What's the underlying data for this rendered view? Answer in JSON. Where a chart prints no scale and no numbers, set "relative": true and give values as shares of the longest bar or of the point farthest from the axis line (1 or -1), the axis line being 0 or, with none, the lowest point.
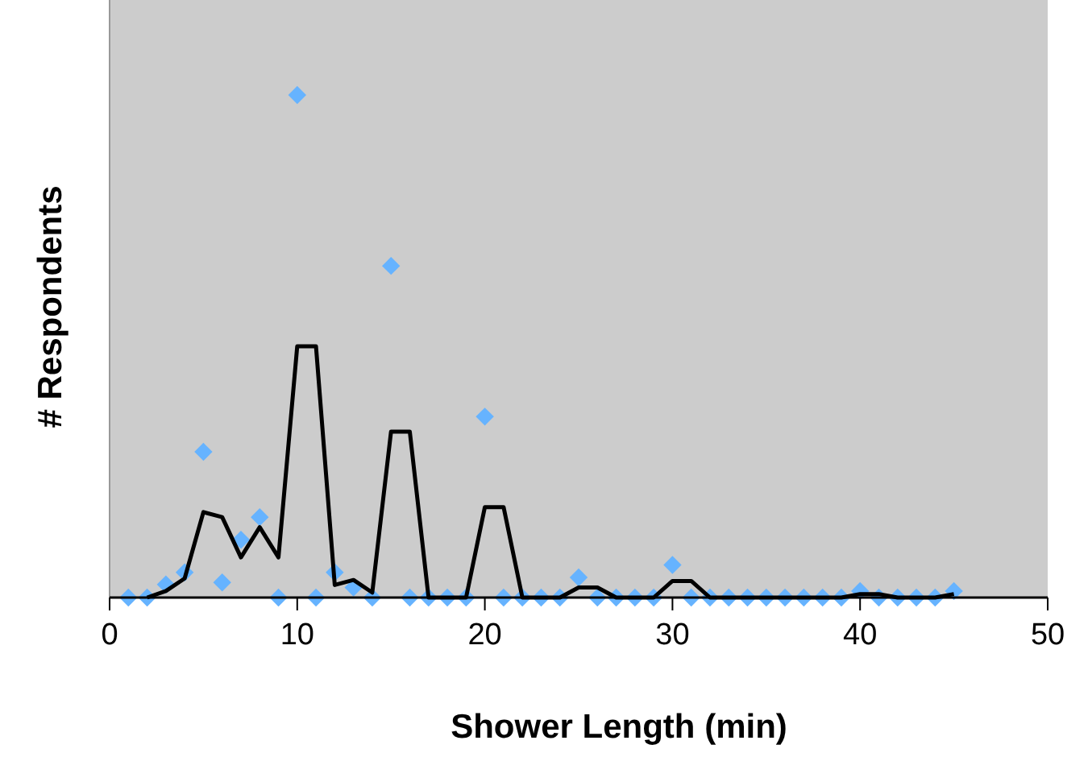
{
  "chart_data": {
    "type": "scatter",
    "xlabel": "Shower Length (min)",
    "ylabel": "# Respondents",
    "relative": true,
    "xlim": [
      0,
      50
    ],
    "xticks": [
      0,
      10,
      20,
      30,
      40,
      50
    ],
    "grid": false,
    "series": [
      {
        "marker": "diamond",
        "color": "#66b3ff",
        "x": [
          1,
          2,
          3,
          4,
          5,
          6,
          7,
          8,
          9,
          10,
          11,
          12,
          13,
          14,
          15,
          16,
          17,
          18,
          19,
          20,
          21,
          22,
          23,
          24,
          25,
          26,
          27,
          28,
          29,
          30,
          31,
          32,
          33,
          34,
          35,
          36,
          37,
          38,
          39,
          40,
          41,
          42,
          43,
          44,
          45
        ],
        "values": [
          0,
          0,
          0.026,
          0.05,
          0.29,
          0.03,
          0.115,
          0.16,
          0,
          1,
          0,
          0.05,
          0.02,
          0,
          0.66,
          0,
          0,
          0,
          0,
          0.36,
          0,
          0,
          0,
          0,
          0.04,
          0,
          0,
          0,
          0,
          0.065,
          0,
          0,
          0,
          0,
          0,
          0,
          0,
          0,
          0,
          0.013,
          0,
          0,
          0,
          0,
          0.013
        ]
      },
      {
        "type": "line",
        "marker": "none",
        "line_style": "solid",
        "color": "#000000",
        "x": [
          2,
          3,
          4,
          5,
          6,
          7,
          8,
          9,
          10,
          11,
          12,
          13,
          14,
          15,
          16,
          17,
          18,
          19,
          20,
          21,
          22,
          23,
          24,
          25,
          26,
          27,
          28,
          29,
          30,
          31,
          32,
          33,
          34,
          35,
          36,
          37,
          38,
          39,
          40,
          41,
          42,
          43,
          44,
          45
        ],
        "values": [
          0,
          0.013,
          0.038,
          0.17,
          0.16,
          0.08,
          0.14,
          0.08,
          0.5,
          0.5,
          0.025,
          0.035,
          0.01,
          0.33,
          0.33,
          0,
          0,
          0,
          0.18,
          0.18,
          0,
          0,
          0,
          0.02,
          0.02,
          0,
          0,
          0,
          0.033,
          0.033,
          0,
          0,
          0,
          0,
          0,
          0,
          0,
          0,
          0.007,
          0.007,
          0,
          0,
          0,
          0.007
        ]
      }
    ]
  }
}
